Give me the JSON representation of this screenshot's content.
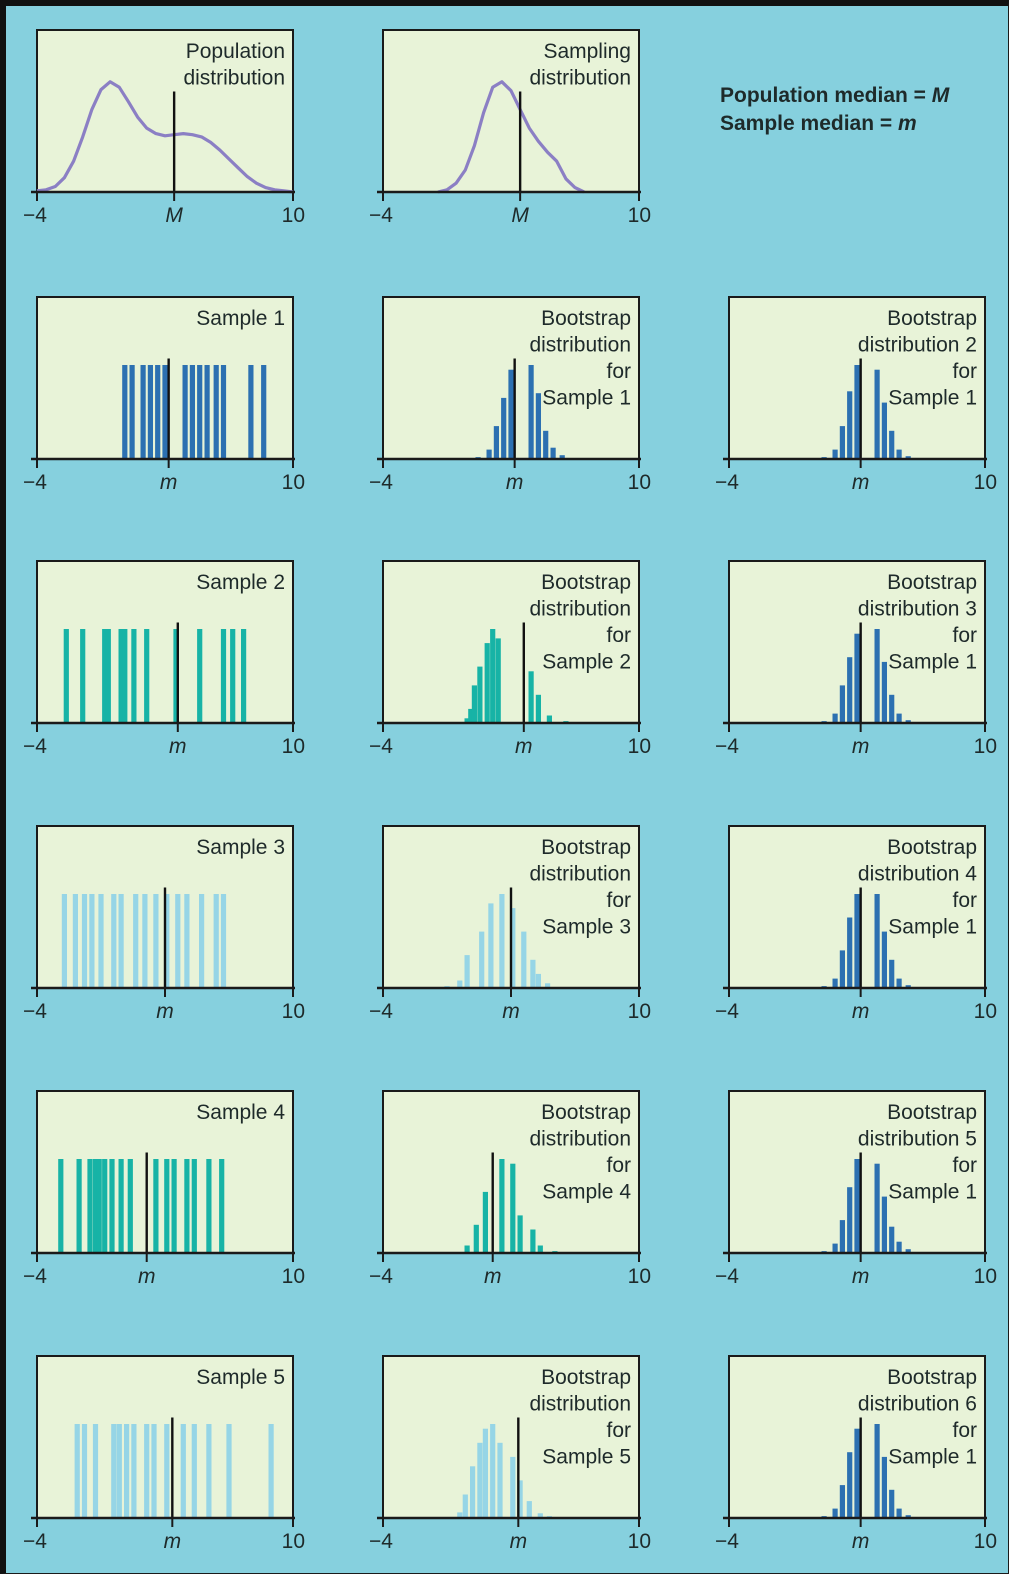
{
  "legend": {
    "line1_prefix": "Population median = ",
    "line1_symbol": "M",
    "line2_prefix": "Sample median = ",
    "line2_symbol": "m"
  },
  "colors": {
    "background": "#86d0de",
    "panel_fill": "#e8f3d8",
    "curve": "#8b7fc4",
    "dark_blue": "#2c70b1",
    "teal": "#17b3a6",
    "light_blue": "#96d5e6",
    "axis": "#1a1a1a"
  },
  "chart_data": [
    {
      "id": "population",
      "type": "line",
      "title_lines": [
        "Population",
        "distribution"
      ],
      "xlim": [
        -4,
        10
      ],
      "tick_labels": [
        "−4",
        "10"
      ],
      "median_label": "M",
      "median": 3.5,
      "color": "curve",
      "x": [
        -4,
        -3.5,
        -3,
        -2.5,
        -2,
        -1.5,
        -1,
        -0.5,
        0,
        0.5,
        1,
        1.5,
        2,
        2.5,
        3,
        3.5,
        4,
        4.5,
        5,
        5.5,
        6,
        6.5,
        7,
        7.5,
        8,
        8.5,
        9,
        9.5,
        10
      ],
      "y": [
        0.01,
        0.02,
        0.05,
        0.13,
        0.28,
        0.5,
        0.75,
        0.93,
        1.0,
        0.95,
        0.82,
        0.68,
        0.58,
        0.53,
        0.51,
        0.52,
        0.53,
        0.52,
        0.5,
        0.45,
        0.38,
        0.3,
        0.22,
        0.14,
        0.08,
        0.04,
        0.02,
        0.01,
        0.0
      ]
    },
    {
      "id": "sampling",
      "type": "line",
      "title_lines": [
        "Sampling",
        "distribution"
      ],
      "xlim": [
        -4,
        10
      ],
      "tick_labels": [
        "−4",
        "10"
      ],
      "median_label": "M",
      "median": 3.5,
      "color": "curve",
      "x": [
        -1,
        -0.5,
        0,
        0.5,
        1,
        1.5,
        2,
        2.5,
        3,
        3.5,
        4,
        4.5,
        5,
        5.5,
        6,
        6.5,
        7
      ],
      "y": [
        0.0,
        0.02,
        0.08,
        0.2,
        0.42,
        0.72,
        0.95,
        1.0,
        0.92,
        0.75,
        0.58,
        0.46,
        0.36,
        0.28,
        0.12,
        0.04,
        0.0
      ]
    },
    {
      "id": "sample1",
      "type": "bar",
      "title_lines": [
        "Sample 1"
      ],
      "xlim": [
        -4,
        10
      ],
      "tick_labels": [
        "−4",
        "10"
      ],
      "median_label": "m",
      "median": 3.2,
      "color": "dark_blue",
      "x": [
        0.8,
        1.2,
        1.8,
        2.2,
        2.6,
        3.0,
        4.1,
        4.5,
        4.9,
        5.3,
        5.8,
        6.2,
        7.7,
        8.4
      ],
      "y": [
        1,
        1,
        1,
        1,
        1,
        1,
        1,
        1,
        1,
        1,
        1,
        1,
        1,
        1
      ]
    },
    {
      "id": "boot_s1",
      "type": "bar",
      "title_lines": [
        "Bootstrap",
        "distribution",
        "for",
        "Sample 1"
      ],
      "xlim": [
        -4,
        10
      ],
      "tick_labels": [
        "−4",
        "10"
      ],
      "median_label": "m",
      "median": 3.2,
      "color": "dark_blue",
      "x": [
        0.8,
        1.2,
        1.8,
        2.2,
        2.6,
        3.0,
        4.1,
        4.5,
        4.9,
        5.3,
        5.8,
        6.2
      ],
      "y": [
        0.01,
        0.02,
        0.1,
        0.35,
        0.65,
        0.95,
        1.0,
        0.7,
        0.3,
        0.12,
        0.04,
        0.01
      ]
    },
    {
      "id": "boot2_s1",
      "type": "bar",
      "title_lines": [
        "Bootstrap",
        "distribution 2",
        "for",
        "Sample 1"
      ],
      "xlim": [
        -4,
        10
      ],
      "tick_labels": [
        "−4",
        "10"
      ],
      "median_label": "m",
      "median": 3.2,
      "color": "dark_blue",
      "x": [
        0.8,
        1.2,
        1.8,
        2.2,
        2.6,
        3.0,
        4.1,
        4.5,
        4.9,
        5.3,
        5.8,
        6.2
      ],
      "y": [
        0.01,
        0.02,
        0.1,
        0.35,
        0.72,
        1.0,
        0.95,
        0.6,
        0.3,
        0.1,
        0.03,
        0.01
      ]
    },
    {
      "id": "sample2",
      "type": "bar",
      "title_lines": [
        "Sample 2"
      ],
      "xlim": [
        -4,
        10
      ],
      "tick_labels": [
        "−4",
        "10"
      ],
      "median_label": "m",
      "median": 3.7,
      "color": "teal",
      "x": [
        -2.4,
        -1.5,
        -0.3,
        -0.1,
        0.6,
        0.8,
        1.3,
        2.0,
        3.6,
        4.9,
        6.2,
        6.7,
        7.3
      ],
      "y": [
        1,
        1,
        1,
        1,
        1,
        1,
        1,
        1,
        1,
        1,
        1,
        1,
        1
      ]
    },
    {
      "id": "boot_s2",
      "type": "bar",
      "title_lines": [
        "Bootstrap",
        "distribution",
        "for",
        "Sample 2"
      ],
      "xlim": [
        -4,
        10
      ],
      "tick_labels": [
        "−4",
        "10"
      ],
      "median_label": "m",
      "median": 3.7,
      "color": "teal",
      "x": [
        0.6,
        0.8,
        1.0,
        1.3,
        1.7,
        2.0,
        2.3,
        4.1,
        4.5,
        5.1,
        6.0
      ],
      "y": [
        0.05,
        0.15,
        0.4,
        0.6,
        0.85,
        1.0,
        0.9,
        0.55,
        0.3,
        0.08,
        0.02
      ]
    },
    {
      "id": "boot3_s1",
      "type": "bar",
      "title_lines": [
        "Bootstrap",
        "distribution 3",
        "for",
        "Sample 1"
      ],
      "xlim": [
        -4,
        10
      ],
      "tick_labels": [
        "−4",
        "10"
      ],
      "median_label": "m",
      "median": 3.2,
      "color": "dark_blue",
      "x": [
        0.8,
        1.2,
        1.8,
        2.2,
        2.6,
        3.0,
        4.1,
        4.5,
        4.9,
        5.3,
        5.8,
        6.2
      ],
      "y": [
        0.01,
        0.02,
        0.1,
        0.4,
        0.7,
        0.95,
        1.0,
        0.65,
        0.3,
        0.1,
        0.03,
        0.01
      ]
    },
    {
      "id": "sample3",
      "type": "bar",
      "title_lines": [
        "Sample 3"
      ],
      "xlim": [
        -4,
        10
      ],
      "tick_labels": [
        "−4",
        "10"
      ],
      "median_label": "m",
      "median": 3.0,
      "color": "light_blue",
      "x": [
        -2.5,
        -1.9,
        -1.4,
        -1.0,
        -0.5,
        0.2,
        0.6,
        1.4,
        1.9,
        2.5,
        3.1,
        3.7,
        4.2,
        5.0,
        5.8,
        6.2
      ],
      "y": [
        1,
        1,
        1,
        1,
        1,
        1,
        1,
        1,
        1,
        1,
        1,
        1,
        1,
        1,
        1,
        1
      ]
    },
    {
      "id": "boot_s3",
      "type": "bar",
      "title_lines": [
        "Bootstrap",
        "distribution",
        "for",
        "Sample 3"
      ],
      "xlim": [
        -4,
        10
      ],
      "tick_labels": [
        "−4",
        "10"
      ],
      "median_label": "m",
      "median": 3.0,
      "color": "light_blue",
      "x": [
        -0.5,
        0.2,
        0.6,
        1.4,
        1.9,
        2.5,
        3.1,
        3.7,
        4.2,
        4.5,
        5.0,
        5.4
      ],
      "y": [
        0.02,
        0.08,
        0.35,
        0.6,
        0.9,
        1.0,
        0.85,
        0.6,
        0.3,
        0.15,
        0.05,
        0.01
      ]
    },
    {
      "id": "boot4_s1",
      "type": "bar",
      "title_lines": [
        "Bootstrap",
        "distribution 4",
        "for",
        "Sample 1"
      ],
      "xlim": [
        -4,
        10
      ],
      "tick_labels": [
        "−4",
        "10"
      ],
      "median_label": "m",
      "median": 3.2,
      "color": "dark_blue",
      "x": [
        0.8,
        1.2,
        1.8,
        2.2,
        2.6,
        3.0,
        4.1,
        4.5,
        4.9,
        5.3,
        5.8,
        6.2
      ],
      "y": [
        0.01,
        0.02,
        0.1,
        0.4,
        0.75,
        1.0,
        1.0,
        0.6,
        0.3,
        0.1,
        0.03,
        0.01
      ]
    },
    {
      "id": "sample4",
      "type": "bar",
      "title_lines": [
        "Sample 4"
      ],
      "xlim": [
        -4,
        10
      ],
      "tick_labels": [
        "−4",
        "10"
      ],
      "median_label": "m",
      "median": 2.0,
      "color": "teal",
      "x": [
        -2.7,
        -1.7,
        -1.1,
        -0.8,
        -0.6,
        -0.3,
        0.1,
        0.6,
        1.1,
        2.5,
        3.1,
        3.5,
        4.2,
        4.6,
        5.4,
        6.1
      ],
      "y": [
        1,
        1,
        1,
        1,
        1,
        1,
        1,
        1,
        1,
        1,
        1,
        1,
        1,
        1,
        1,
        1
      ]
    },
    {
      "id": "boot_s4",
      "type": "bar",
      "title_lines": [
        "Bootstrap",
        "distribution",
        "for",
        "Sample 4"
      ],
      "xlim": [
        -4,
        10
      ],
      "tick_labels": [
        "−4",
        "10"
      ],
      "median_label": "m",
      "median": 2.0,
      "color": "teal",
      "x": [
        0.6,
        1.1,
        1.6,
        2.5,
        3.1,
        3.5,
        4.2,
        4.6,
        5.4
      ],
      "y": [
        0.08,
        0.3,
        0.65,
        1.0,
        0.95,
        0.4,
        0.25,
        0.08,
        0.02
      ]
    },
    {
      "id": "boot5_s1",
      "type": "bar",
      "title_lines": [
        "Bootstrap",
        "distribution 5",
        "for",
        "Sample 1"
      ],
      "xlim": [
        -4,
        10
      ],
      "tick_labels": [
        "−4",
        "10"
      ],
      "median_label": "m",
      "median": 3.2,
      "color": "dark_blue",
      "x": [
        0.8,
        1.2,
        1.8,
        2.2,
        2.6,
        3.0,
        4.1,
        4.5,
        4.9,
        5.3,
        5.8,
        6.2
      ],
      "y": [
        0.01,
        0.02,
        0.1,
        0.35,
        0.7,
        1.0,
        0.95,
        0.6,
        0.28,
        0.12,
        0.04,
        0.01
      ]
    },
    {
      "id": "sample5",
      "type": "bar",
      "title_lines": [
        "Sample 5"
      ],
      "xlim": [
        -4,
        10
      ],
      "tick_labels": [
        "−4",
        "10"
      ],
      "median_label": "m",
      "median": 3.4,
      "color": "light_blue",
      "x": [
        -1.8,
        -1.4,
        -0.8,
        0.2,
        0.5,
        0.9,
        1.3,
        2.0,
        2.4,
        3.1,
        4.0,
        4.6,
        5.4,
        6.5,
        8.8
      ],
      "y": [
        1,
        1,
        1,
        1,
        1,
        1,
        1,
        1,
        1,
        1,
        1,
        1,
        1,
        1,
        1
      ]
    },
    {
      "id": "boot_s5",
      "type": "bar",
      "title_lines": [
        "Bootstrap",
        "distribution",
        "for",
        "Sample 5"
      ],
      "xlim": [
        -4,
        10
      ],
      "tick_labels": [
        "−4",
        "10"
      ],
      "median_label": "m",
      "median": 3.4,
      "color": "light_blue",
      "x": [
        -0.8,
        0.2,
        0.5,
        0.9,
        1.3,
        1.6,
        2.0,
        2.4,
        3.1,
        3.5,
        4.0,
        4.6,
        5.1,
        6.5
      ],
      "y": [
        0.01,
        0.06,
        0.25,
        0.55,
        0.8,
        0.95,
        1.0,
        0.8,
        0.65,
        0.4,
        0.18,
        0.05,
        0.02,
        0.01
      ]
    },
    {
      "id": "boot6_s1",
      "type": "bar",
      "title_lines": [
        "Bootstrap",
        "distribution 6",
        "for",
        "Sample 1"
      ],
      "xlim": [
        -4,
        10
      ],
      "tick_labels": [
        "−4",
        "10"
      ],
      "median_label": "m",
      "median": 3.2,
      "color": "dark_blue",
      "x": [
        0.8,
        1.2,
        1.8,
        2.2,
        2.6,
        3.0,
        4.1,
        4.5,
        4.9,
        5.3,
        5.8,
        6.2
      ],
      "y": [
        0.01,
        0.02,
        0.1,
        0.35,
        0.7,
        0.95,
        1.0,
        0.65,
        0.3,
        0.1,
        0.03,
        0.01
      ]
    }
  ]
}
